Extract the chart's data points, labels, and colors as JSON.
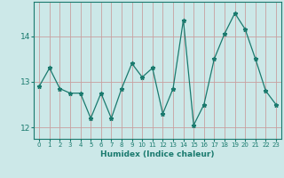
{
  "title": "",
  "xlabel": "Humidex (Indice chaleur)",
  "ylabel": "",
  "x": [
    0,
    1,
    2,
    3,
    4,
    5,
    6,
    7,
    8,
    9,
    10,
    11,
    12,
    13,
    14,
    15,
    16,
    17,
    18,
    19,
    20,
    21,
    22,
    23
  ],
  "y": [
    12.9,
    13.3,
    12.85,
    12.75,
    12.75,
    12.2,
    12.75,
    12.2,
    12.85,
    13.4,
    13.1,
    13.3,
    12.3,
    12.85,
    14.35,
    12.05,
    12.5,
    13.5,
    14.05,
    14.5,
    14.15,
    13.5,
    12.8,
    12.5
  ],
  "line_color": "#1a7a6e",
  "marker": "*",
  "bg_color": "#cce8e8",
  "grid_color_v": "#c8a0a0",
  "grid_color_h": "#c8a0a0",
  "ylim": [
    11.75,
    14.75
  ],
  "yticks": [
    12,
    13,
    14
  ],
  "xlim": [
    -0.5,
    23.5
  ]
}
